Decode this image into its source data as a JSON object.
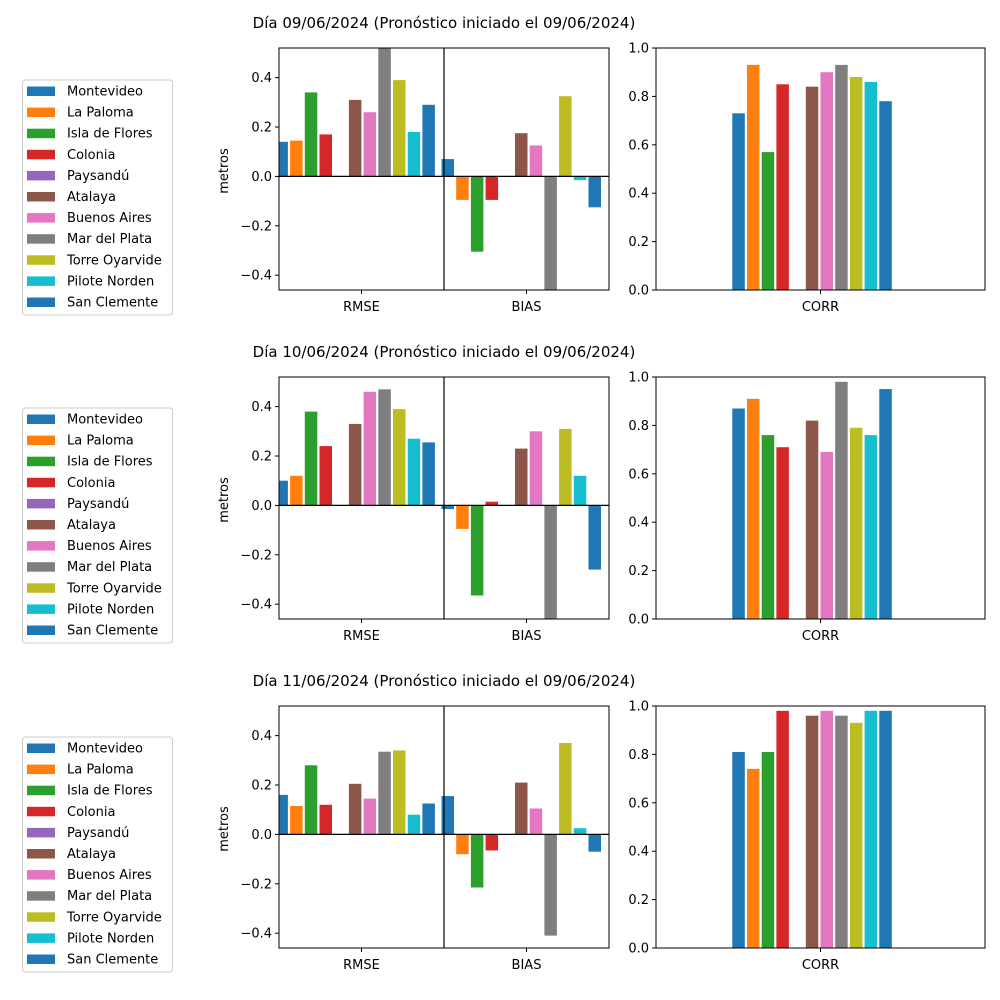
{
  "stations": [
    "Montevideo",
    "La Paloma",
    "Isla de Flores",
    "Colonia",
    "Paysandú",
    "Atalaya",
    "Buenos Aires",
    "Mar del Plata",
    "Torre Oyarvide",
    "Pilote Norden",
    "San Clemente"
  ],
  "colors": [
    "#1f77b4",
    "#ff7f0e",
    "#2ca02c",
    "#d62728",
    "#9467bd",
    "#8c564b",
    "#e377c2",
    "#7f7f7f",
    "#bcbd22",
    "#17becf",
    "#1f77b4"
  ],
  "chart_data": [
    {
      "type": "bar",
      "title": "Día 09/06/2024 (Pronóstico iniciado el 09/06/2024)",
      "ylabel": "metros",
      "categories": [
        "RMSE",
        "BIAS",
        "CORR"
      ],
      "error_ylim": [
        -0.46,
        0.52
      ],
      "error_yticks": [
        -0.4,
        -0.2,
        0.0,
        0.2,
        0.4
      ],
      "error_yticklabels": [
        "−0.4",
        "−0.2",
        "0.0",
        "0.2",
        "0.4"
      ],
      "corr_ylim": [
        0,
        1
      ],
      "corr_yticks": [
        0,
        0.2,
        0.4,
        0.6,
        0.8,
        1.0
      ],
      "corr_yticklabels": [
        "0.0",
        "0.2",
        "0.4",
        "0.6",
        "0.8",
        "1.0"
      ],
      "rmse": [
        0.14,
        0.145,
        0.34,
        0.17,
        null,
        0.31,
        0.26,
        0.52,
        0.39,
        0.18,
        0.29
      ],
      "bias": [
        0.07,
        -0.095,
        -0.305,
        -0.095,
        null,
        0.175,
        0.125,
        -0.46,
        0.325,
        -0.015,
        -0.125
      ],
      "corr": [
        0.73,
        0.93,
        0.57,
        0.85,
        null,
        0.84,
        0.9,
        0.93,
        0.88,
        0.86,
        0.78
      ]
    },
    {
      "type": "bar",
      "title": "Día 10/06/2024 (Pronóstico iniciado el 09/06/2024)",
      "ylabel": "metros",
      "categories": [
        "RMSE",
        "BIAS",
        "CORR"
      ],
      "error_ylim": [
        -0.46,
        0.52
      ],
      "error_yticks": [
        -0.4,
        -0.2,
        0.0,
        0.2,
        0.4
      ],
      "error_yticklabels": [
        "−0.4",
        "−0.2",
        "0.0",
        "0.2",
        "0.4"
      ],
      "corr_ylim": [
        0,
        1
      ],
      "corr_yticks": [
        0,
        0.2,
        0.4,
        0.6,
        0.8,
        1.0
      ],
      "corr_yticklabels": [
        "0.0",
        "0.2",
        "0.4",
        "0.6",
        "0.8",
        "1.0"
      ],
      "rmse": [
        0.1,
        0.12,
        0.38,
        0.24,
        null,
        0.33,
        0.46,
        0.47,
        0.39,
        0.27,
        0.255
      ],
      "bias": [
        -0.015,
        -0.095,
        -0.365,
        0.015,
        null,
        0.23,
        0.3,
        -0.46,
        0.31,
        0.12,
        -0.26
      ],
      "corr": [
        0.87,
        0.91,
        0.76,
        0.71,
        null,
        0.82,
        0.69,
        0.98,
        0.79,
        0.76,
        0.95
      ]
    },
    {
      "type": "bar",
      "title": "Día 11/06/2024 (Pronóstico iniciado el 09/06/2024)",
      "ylabel": "metros",
      "categories": [
        "RMSE",
        "BIAS",
        "CORR"
      ],
      "error_ylim": [
        -0.46,
        0.52
      ],
      "error_yticks": [
        -0.4,
        -0.2,
        0.0,
        0.2,
        0.4
      ],
      "error_yticklabels": [
        "−0.4",
        "−0.2",
        "0.0",
        "0.2",
        "0.4"
      ],
      "corr_ylim": [
        0,
        1
      ],
      "corr_yticks": [
        0,
        0.2,
        0.4,
        0.6,
        0.8,
        1.0
      ],
      "corr_yticklabels": [
        "0.0",
        "0.2",
        "0.4",
        "0.6",
        "0.8",
        "1.0"
      ],
      "rmse": [
        0.16,
        0.115,
        0.28,
        0.12,
        null,
        0.205,
        0.145,
        0.335,
        0.34,
        0.08,
        0.125
      ],
      "bias": [
        0.155,
        -0.08,
        -0.215,
        -0.065,
        null,
        0.21,
        0.105,
        -0.41,
        0.37,
        0.025,
        -0.07
      ],
      "corr": [
        0.81,
        0.74,
        0.81,
        0.98,
        null,
        0.96,
        0.98,
        0.96,
        0.93,
        0.98,
        0.98
      ]
    }
  ]
}
